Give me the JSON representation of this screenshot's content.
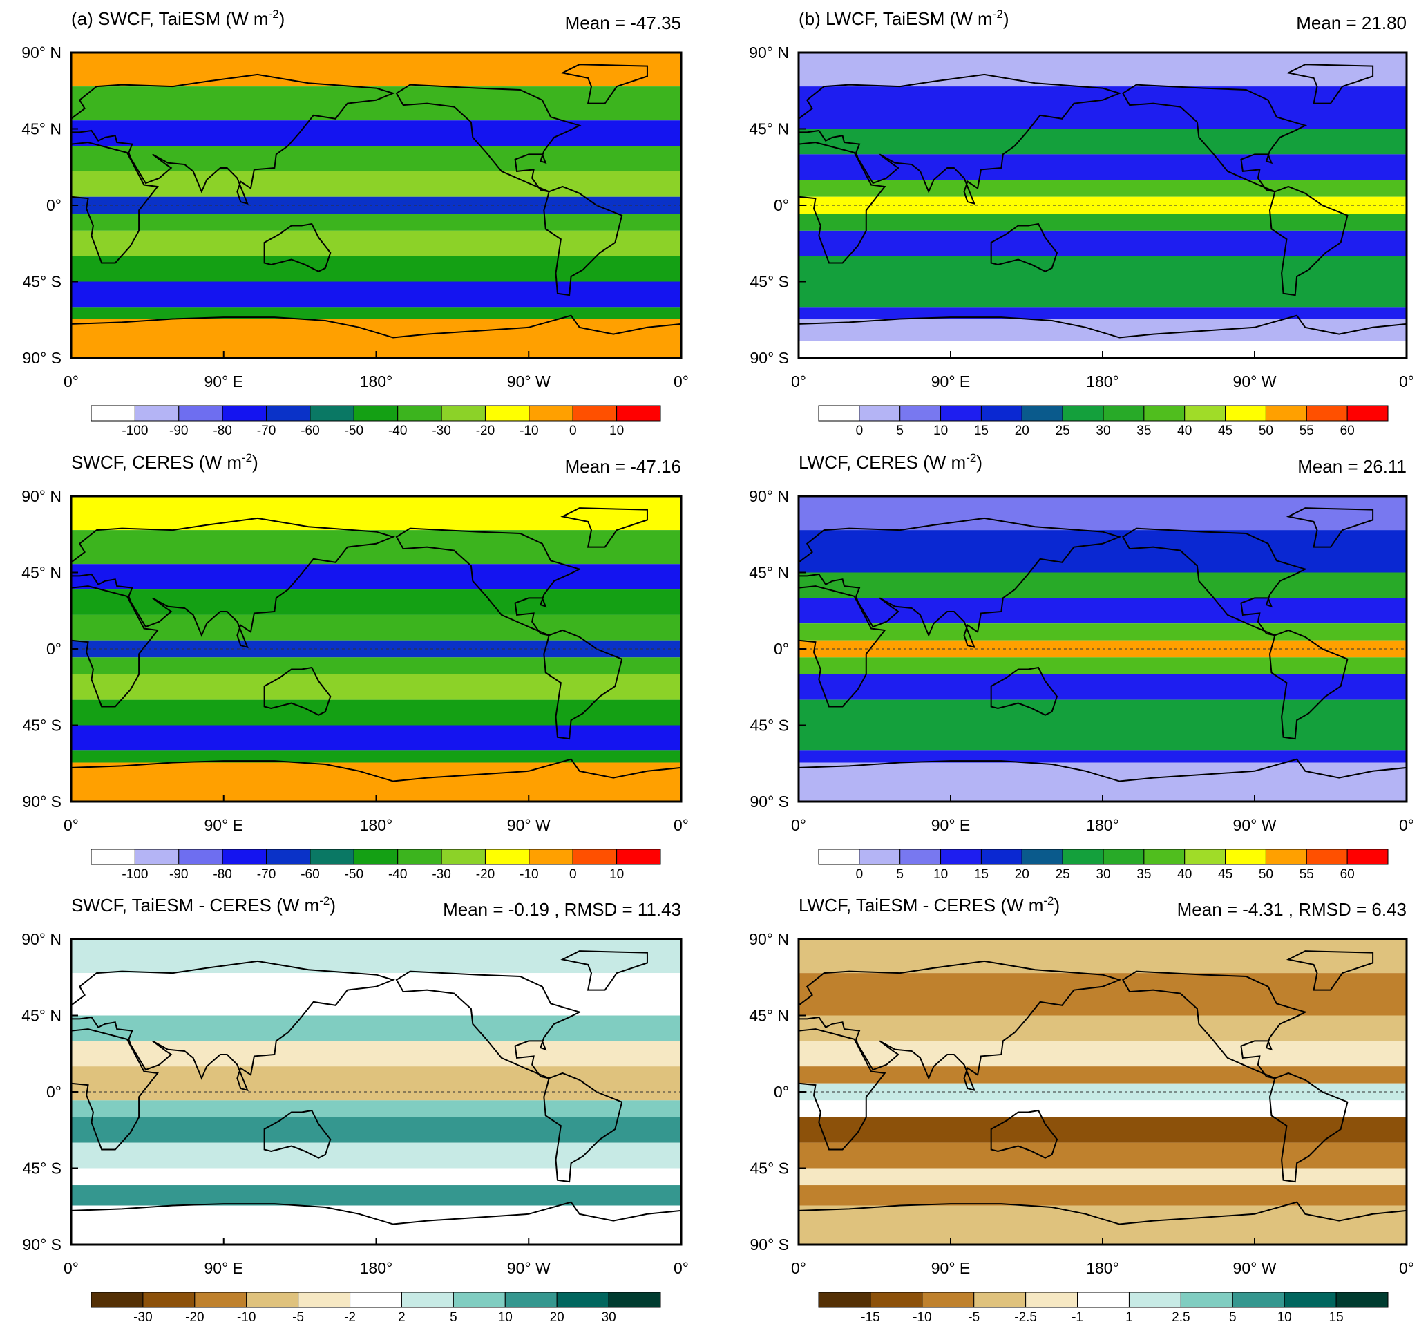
{
  "axes": {
    "lat_labels": [
      "90° N",
      "45° N",
      "0°",
      "45° S",
      "90° S"
    ],
    "lon_labels": [
      "0°",
      "90° E",
      "180°",
      "90° W",
      "0°"
    ]
  },
  "panels": [
    {
      "title": "(a) SWCF, TaiESM (W m",
      "title_sup": "-2",
      "title_end": ")",
      "stats": "Mean = -47.35",
      "colorbar": {
        "labels": [
          -100,
          -90,
          -80,
          -70,
          -60,
          -50,
          -40,
          -30,
          -20,
          -10,
          0,
          10
        ],
        "colors": [
          "#ffffff",
          "#b4b4f5",
          "#6e6ef0",
          "#1414f0",
          "#0a32c8",
          "#0a7864",
          "#14a014",
          "#3cb41e",
          "#8cd228",
          "#ffff00",
          "#ffa000",
          "#ff5000",
          "#ff0000"
        ]
      }
    },
    {
      "title": "(b) LWCF, TaiESM (W m",
      "title_sup": "-2",
      "title_end": ")",
      "stats": "Mean = 21.80",
      "colorbar": {
        "labels": [
          0,
          5,
          10,
          15,
          20,
          25,
          30,
          35,
          40,
          45,
          50,
          55,
          60
        ],
        "colors": [
          "#ffffff",
          "#b4b4f5",
          "#7878f0",
          "#1e1ef0",
          "#0a28d2",
          "#0a5a8c",
          "#14a03c",
          "#28aa28",
          "#50be1e",
          "#a0dc28",
          "#ffff00",
          "#ffa000",
          "#ff5000",
          "#ff0000"
        ]
      }
    },
    {
      "title": "SWCF, CERES (W m",
      "title_sup": "-2",
      "title_end": ")",
      "stats": "Mean = -47.16",
      "colorbar": {
        "labels": [
          -100,
          -90,
          -80,
          -70,
          -60,
          -50,
          -40,
          -30,
          -20,
          -10,
          0,
          10
        ],
        "colors": [
          "#ffffff",
          "#b4b4f5",
          "#6e6ef0",
          "#1414f0",
          "#0a32c8",
          "#0a7864",
          "#14a014",
          "#3cb41e",
          "#8cd228",
          "#ffff00",
          "#ffa000",
          "#ff5000",
          "#ff0000"
        ]
      }
    },
    {
      "title": "LWCF, CERES (W m",
      "title_sup": "-2",
      "title_end": ")",
      "stats": "Mean = 26.11",
      "colorbar": {
        "labels": [
          0,
          5,
          10,
          15,
          20,
          25,
          30,
          35,
          40,
          45,
          50,
          55,
          60
        ],
        "colors": [
          "#ffffff",
          "#b4b4f5",
          "#7878f0",
          "#1e1ef0",
          "#0a28d2",
          "#0a5a8c",
          "#14a03c",
          "#28aa28",
          "#50be1e",
          "#a0dc28",
          "#ffff00",
          "#ffa000",
          "#ff5000",
          "#ff0000"
        ]
      }
    },
    {
      "title": "SWCF, TaiESM - CERES (W m",
      "title_sup": "-2",
      "title_end": ")",
      "stats": "Mean = -0.19 , RMSD = 11.43",
      "colorbar": {
        "labels": [
          -30,
          -20,
          -10,
          -5,
          -2,
          2,
          5,
          10,
          20,
          30
        ],
        "colors": [
          "#543005",
          "#8c510a",
          "#bf812d",
          "#dfc27d",
          "#f6e8c3",
          "#ffffff",
          "#c7eae5",
          "#80cdc1",
          "#35978f",
          "#01665e",
          "#003c30"
        ]
      }
    },
    {
      "title": "LWCF, TaiESM - CERES (W m",
      "title_sup": "-2",
      "title_end": ")",
      "stats": "Mean = -4.31 , RMSD = 6.43",
      "colorbar": {
        "labels": [
          -15,
          -10,
          -5,
          -2.5,
          -1,
          1,
          2.5,
          5,
          10,
          15
        ],
        "colors": [
          "#543005",
          "#8c510a",
          "#bf812d",
          "#dfc27d",
          "#f6e8c3",
          "#ffffff",
          "#c7eae5",
          "#80cdc1",
          "#35978f",
          "#01665e",
          "#003c30"
        ]
      }
    }
  ]
}
